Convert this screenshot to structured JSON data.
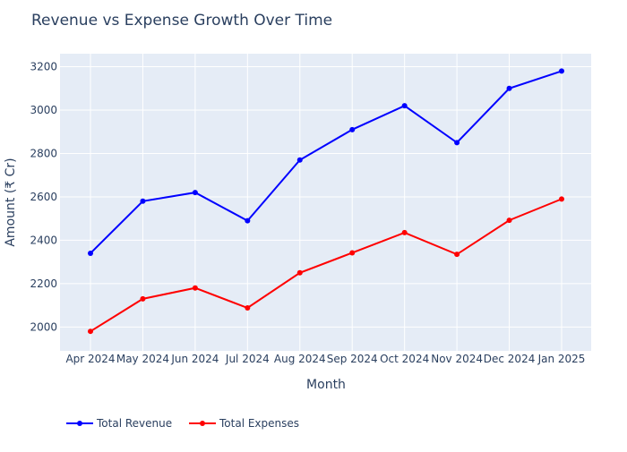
{
  "chart_data": {
    "type": "line",
    "title": "Revenue vs Expense Growth Over Time",
    "xlabel": "Month",
    "ylabel": "Amount (₹ Cr)",
    "categories": [
      "Apr 2024",
      "May 2024",
      "Jun 2024",
      "Jul 2024",
      "Aug 2024",
      "Sep 2024",
      "Oct 2024",
      "Nov 2024",
      "Dec 2024",
      "Jan 2025"
    ],
    "ylim": [
      1890,
      3260
    ],
    "yticks": [
      2000,
      2200,
      2400,
      2600,
      2800,
      3000,
      3200
    ],
    "grid": true,
    "legend_position": "bottom-left",
    "series": [
      {
        "name": "Total Revenue",
        "color": "#0000ff",
        "values": [
          2340,
          2580,
          2620,
          2490,
          2770,
          2910,
          3020,
          2850,
          3100,
          3180
        ]
      },
      {
        "name": "Total Expenses",
        "color": "#ff0000",
        "values": [
          1980,
          2130,
          2180,
          2088,
          2250,
          2342,
          2435,
          2335,
          2492,
          2590
        ]
      }
    ]
  },
  "colors": {
    "plot_background": "#e5ecf6",
    "grid": "#ffffff",
    "text": "#2a3f5f"
  }
}
